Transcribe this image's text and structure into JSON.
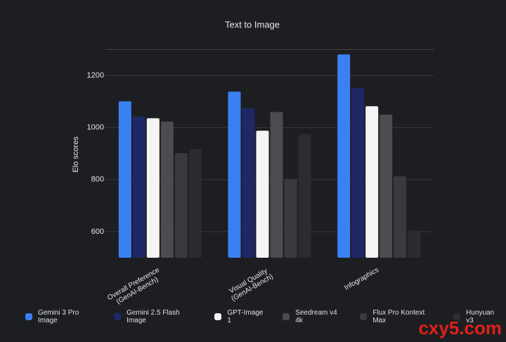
{
  "chart_data": {
    "type": "bar",
    "title": "Text to Image",
    "y_label": "Elo scores",
    "categories": [
      "Overall Preference\n(GenAI-Bench)",
      "Visual Quality\n(GenAI-Bench)",
      "Infographics"
    ],
    "series": [
      {
        "name": "Gemini 3 Pro Image",
        "color": "#3b80f2",
        "values": [
          1101,
          1138,
          1281
        ]
      },
      {
        "name": "Gemini 2.5 Flash Image",
        "color": "#1f2866",
        "values": [
          1042,
          1074,
          1152
        ]
      },
      {
        "name": "GPT-Image 1",
        "color": "#f4f4f5",
        "values": [
          1036,
          988,
          1082
        ]
      },
      {
        "name": "Seedream v4 4k",
        "color": "#4b4c50",
        "values": [
          1023,
          1060,
          1050
        ]
      },
      {
        "name": "Flux Pro Kontext Max",
        "color": "#393a3e",
        "values": [
          902,
          803,
          813
        ]
      },
      {
        "name": "Hunyuan v3",
        "color": "#2b2c30",
        "values": [
          918,
          975,
          604
        ]
      }
    ],
    "ylim": [
      500,
      1300
    ],
    "yticks": [
      600,
      800,
      1000,
      1200
    ],
    "grid": true,
    "watermark": "cxy5.com"
  }
}
